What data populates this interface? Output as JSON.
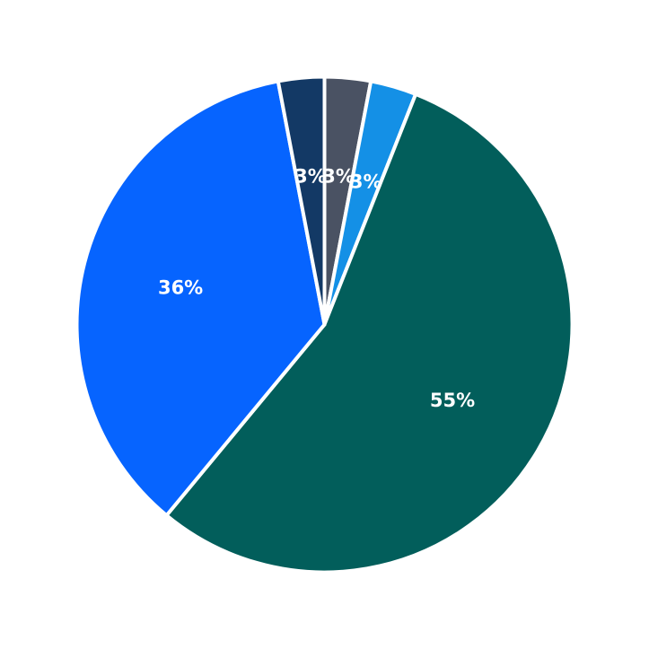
{
  "chart_data": {
    "type": "pie",
    "start": "top",
    "direction": "clockwise",
    "slices": [
      {
        "value": 3,
        "label": "3%",
        "color": "#4a5263"
      },
      {
        "value": 3,
        "label": "3%",
        "color": "#1490e6"
      },
      {
        "value": 55,
        "label": "55%",
        "color": "#025e5b"
      },
      {
        "value": 36,
        "label": "36%",
        "color": "#0664ff"
      },
      {
        "value": 3,
        "label": "3%",
        "color": "#133965"
      }
    ]
  }
}
